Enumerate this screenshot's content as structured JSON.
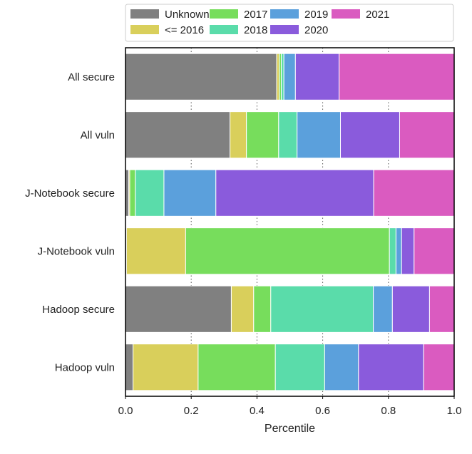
{
  "chart_data": {
    "type": "bar",
    "orientation": "horizontal",
    "stacked": true,
    "xlabel": "Percentile",
    "ylabel": "",
    "xlim": [
      0.0,
      1.0
    ],
    "xticks": [
      "0.0",
      "0.2",
      "0.4",
      "0.6",
      "0.8",
      "1.0"
    ],
    "grid": "vertical dotted",
    "legend_placement": "top",
    "categories": [
      "All secure",
      "All vuln",
      "J-Notebook secure",
      "J-Notebook vuln",
      "Hadoop secure",
      "Hadoop vuln"
    ],
    "series": [
      {
        "name": "Unknown",
        "color": "#808080",
        "values": [
          0.46,
          0.318,
          0.01,
          0.003,
          0.322,
          0.023
        ]
      },
      {
        "name": "<= 2016",
        "color": "#d9cf5b",
        "values": [
          0.008,
          0.05,
          0.003,
          0.18,
          0.068,
          0.198
        ]
      },
      {
        "name": "2017",
        "color": "#77dd5c",
        "values": [
          0.006,
          0.098,
          0.017,
          0.62,
          0.052,
          0.235
        ]
      },
      {
        "name": "2018",
        "color": "#5adcaa",
        "values": [
          0.008,
          0.056,
          0.087,
          0.02,
          0.312,
          0.15
        ]
      },
      {
        "name": "2019",
        "color": "#5ba0dc",
        "values": [
          0.035,
          0.132,
          0.158,
          0.017,
          0.058,
          0.103
        ]
      },
      {
        "name": "2020",
        "color": "#8a5bdc",
        "values": [
          0.133,
          0.18,
          0.48,
          0.038,
          0.113,
          0.198
        ]
      },
      {
        "name": "2021",
        "color": "#da5bc0",
        "values": [
          0.35,
          0.166,
          0.245,
          0.122,
          0.075,
          0.093
        ]
      }
    ]
  }
}
